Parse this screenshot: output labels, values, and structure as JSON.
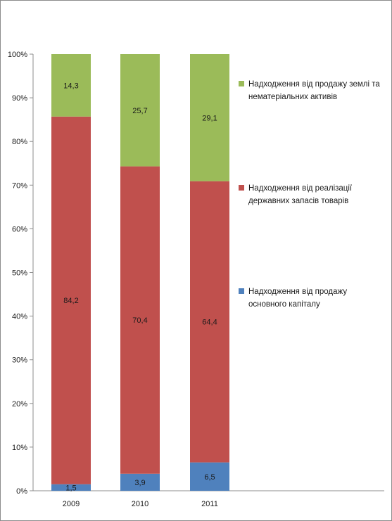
{
  "chart_data": {
    "type": "bar",
    "stacked": true,
    "percent": true,
    "categories": [
      "2009",
      "2010",
      "2011"
    ],
    "series": [
      {
        "name": "Надходження від продажу основного капіталу",
        "color": "#4f81bd",
        "values": [
          1.5,
          3.9,
          6.5
        ],
        "labels": [
          "1,5",
          "3,9",
          "6,5"
        ]
      },
      {
        "name": "Надходження від реалізації державних запасів товарів",
        "color": "#c0504d",
        "values": [
          84.2,
          70.4,
          64.4
        ],
        "labels": [
          "84,2",
          "70,4",
          "64,4"
        ]
      },
      {
        "name": "Надходження від продажу землі та нематеріальних активів",
        "color": "#9bbb59",
        "values": [
          14.3,
          25.7,
          29.1
        ],
        "labels": [
          "14,3",
          "25,7",
          "29,1"
        ]
      }
    ],
    "y_ticks": [
      "0%",
      "10%",
      "20%",
      "30%",
      "40%",
      "50%",
      "60%",
      "70%",
      "80%",
      "90%",
      "100%"
    ],
    "ylim": [
      0,
      100
    ],
    "grid": false,
    "legend_position": "right"
  }
}
